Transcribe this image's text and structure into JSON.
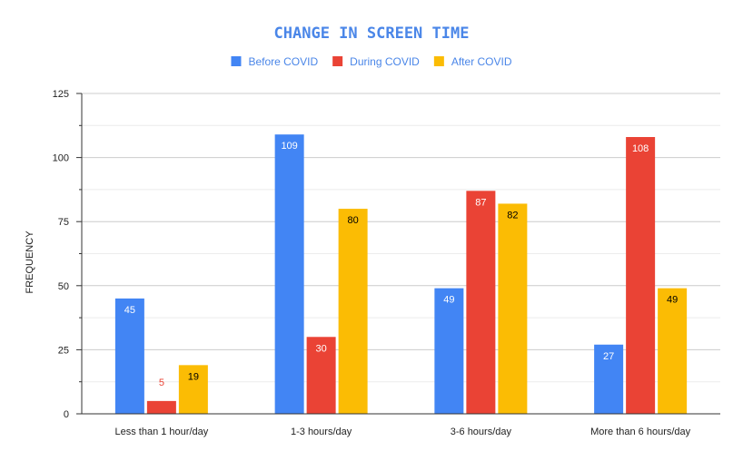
{
  "chart_data": {
    "type": "bar",
    "title": "CHANGE IN SCREEN TIME",
    "xlabel": "",
    "ylabel": "FREQUENCY",
    "categories": [
      "Less than 1 hour/day",
      "1-3 hours/day",
      "3-6 hours/day",
      "More than 6 hours/day"
    ],
    "series": [
      {
        "name": "Before COVID",
        "values": [
          45,
          109,
          49,
          27
        ],
        "color": "#4285f4",
        "label_color": "#ffffff"
      },
      {
        "name": "During COVID",
        "values": [
          5,
          30,
          87,
          108
        ],
        "color": "#ea4335",
        "label_color": "#ffffff"
      },
      {
        "name": "After COVID",
        "values": [
          19,
          80,
          82,
          49
        ],
        "color": "#fbbc04",
        "label_color": "#000000"
      }
    ],
    "ylim": [
      0,
      125
    ],
    "yticks": [
      0,
      25,
      50,
      75,
      100,
      125
    ],
    "grid": true,
    "legend_position": "top"
  }
}
